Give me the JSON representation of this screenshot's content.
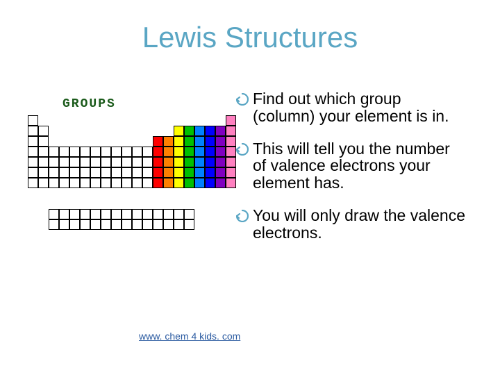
{
  "title": {
    "text": "Lewis Structures",
    "color": "#5aa6c4",
    "fontsize": 42
  },
  "bullets": {
    "fontsize": 23,
    "color": "#000000",
    "icon_color": "#5aa6c4",
    "items": [
      "Find out which group (column) your element is in.",
      "This will tell you the number of valence electrons your element has.",
      "You will only draw the valence electrons."
    ]
  },
  "link": {
    "text": "www. chem 4 kids. com",
    "color": "#2a5aa0",
    "fontsize": 14
  },
  "periodic_table": {
    "label": "GROUPS",
    "cell_size": 15,
    "tall_colors": [
      "#ff0000",
      "#ff8000",
      "#ffff00",
      "#00c000",
      "#0080ff",
      "#0000ff",
      "#8000c0",
      "#ff80c0"
    ],
    "short_block": {
      "cols": 10,
      "rows": 4,
      "left_col": 2,
      "top_row": 3
    },
    "col1": {
      "rows": 7,
      "top_row": 0
    },
    "col2": {
      "rows": 6,
      "top_row": 1
    },
    "tall_block": {
      "rows": 5,
      "top_row": 2,
      "left_col": 12
    },
    "lanth": {
      "rows": 2,
      "cols": 14,
      "top_row": 8,
      "left_col": 2
    },
    "border_color": "#000000",
    "bg_color": "#ffffff"
  }
}
